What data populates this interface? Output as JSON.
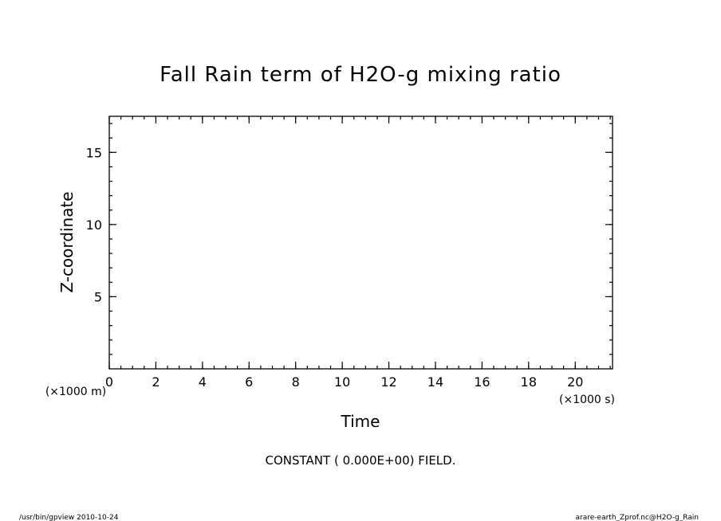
{
  "chart_data": {
    "type": "heatmap",
    "title": "Fall Rain term of H2O-g mixing ratio",
    "xlabel": "Time",
    "ylabel": "Z-coordinate",
    "x_unit": "(×1000 s)",
    "y_unit": "(×1000 m)",
    "xlim": [
      0,
      21.6
    ],
    "ylim": [
      0,
      17.5
    ],
    "x_ticks": [
      0,
      2,
      4,
      6,
      8,
      10,
      12,
      14,
      16,
      18,
      20
    ],
    "x_tick_labels": [
      "0",
      "2",
      "4",
      "6",
      "8",
      "10",
      "12",
      "14",
      "16",
      "18",
      "20"
    ],
    "x_minor_step": 0.5,
    "y_ticks": [
      5,
      10,
      15
    ],
    "y_tick_labels": [
      "5",
      "10",
      "15"
    ],
    "y_minor_step": 1,
    "grid": false,
    "field_value": 0,
    "annotation": "CONSTANT ( 0.000E+00) FIELD."
  },
  "footer": {
    "left": "/usr/bin/gpview   2010-10-24",
    "right": "arare-earth_Zprof.nc@H2O-g_Rain"
  }
}
